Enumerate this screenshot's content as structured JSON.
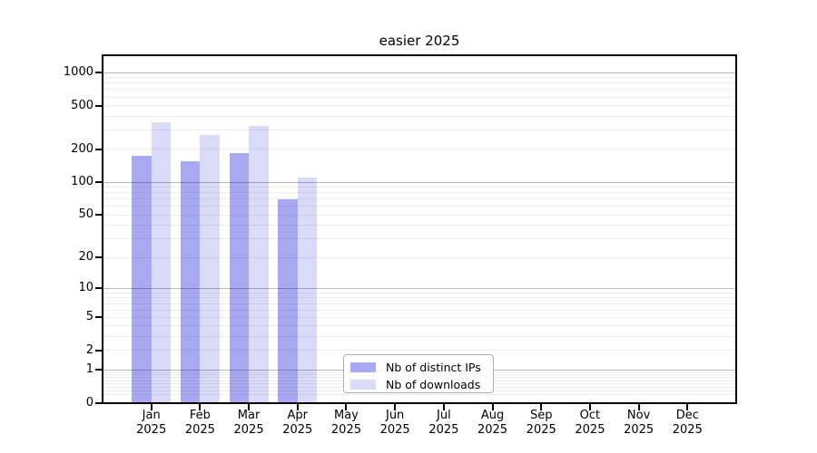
{
  "title": "easier 2025",
  "chart_data": {
    "type": "bar",
    "title": "easier 2025",
    "categories": [
      "Jan",
      "Feb",
      "Mar",
      "Apr",
      "May",
      "Jun",
      "Jul",
      "Aug",
      "Sep",
      "Oct",
      "Nov",
      "Dec"
    ],
    "year_label": "2025",
    "series": [
      {
        "name": "Nb of distinct IPs",
        "color": "#a9a9f3",
        "values": [
          175,
          155,
          185,
          70,
          null,
          null,
          null,
          null,
          null,
          null,
          null,
          null
        ]
      },
      {
        "name": "Nb of downloads",
        "color": "#dadaf9",
        "values": [
          350,
          270,
          325,
          110,
          null,
          null,
          null,
          null,
          null,
          null,
          null,
          null
        ]
      }
    ],
    "y_scale": "log10(1+v)",
    "ylim": [
      0,
      1435
    ],
    "y_ticks": [
      0,
      1,
      2,
      5,
      10,
      20,
      50,
      100,
      200,
      500,
      1000
    ],
    "y_major_grid": [
      1,
      10,
      100,
      1000
    ],
    "grid": true,
    "legend_position": "inside lower-center"
  },
  "colors": {
    "distinct_ips": "#a9a9f3",
    "downloads": "#dadaf9",
    "axis": "#000000",
    "grid_minor": "#ececec",
    "grid_major": "#b9b9b9",
    "legend_border": "#b0b0b0"
  }
}
